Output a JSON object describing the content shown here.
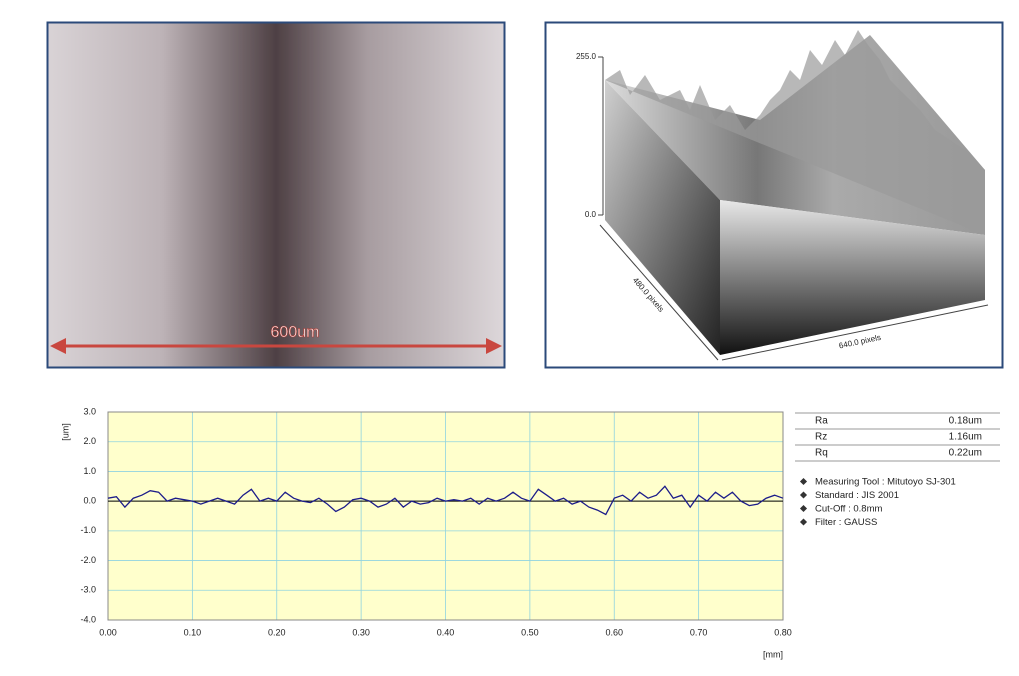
{
  "micrograph": {
    "scale_label": "600um"
  },
  "surface_plot": {
    "z_top": "255.0",
    "z_bottom": "0.0",
    "y_axis": "480.0 pixels",
    "x_axis": "640.0 pixels"
  },
  "chart_data": {
    "type": "line",
    "y_label": "[um]",
    "x_label": "[mm]",
    "xlim": [
      0,
      0.8
    ],
    "xticks": [
      {
        "value": 0,
        "label": "0.00"
      },
      {
        "value": 0.1,
        "label": "0.10"
      },
      {
        "value": 0.2,
        "label": "0.20"
      },
      {
        "value": 0.3,
        "label": "0.30"
      },
      {
        "value": 0.4,
        "label": "0.40"
      },
      {
        "value": 0.5,
        "label": "0.50"
      },
      {
        "value": 0.6,
        "label": "0.60"
      },
      {
        "value": 0.7,
        "label": "0.70"
      },
      {
        "value": 0.8,
        "label": "0.80"
      }
    ],
    "ylim": [
      -4,
      3
    ],
    "yticks": [
      {
        "value": 3,
        "label": "3.0"
      },
      {
        "value": 2,
        "label": "2.0"
      },
      {
        "value": 1,
        "label": "1.0"
      },
      {
        "value": 0,
        "label": "0.0"
      },
      {
        "value": -1,
        "label": "-1.0"
      },
      {
        "value": -2,
        "label": "-2.0"
      },
      {
        "value": -3,
        "label": "-3.0"
      },
      {
        "value": -4,
        "label": "-4.0"
      }
    ],
    "grid": true,
    "x": [
      0,
      0.01,
      0.02,
      0.03,
      0.04,
      0.05,
      0.06,
      0.07,
      0.08,
      0.09,
      0.1,
      0.11,
      0.12,
      0.13,
      0.14,
      0.15,
      0.16,
      0.17,
      0.18,
      0.19,
      0.2,
      0.21,
      0.22,
      0.23,
      0.24,
      0.25,
      0.26,
      0.27,
      0.28,
      0.29,
      0.3,
      0.31,
      0.32,
      0.33,
      0.34,
      0.35,
      0.36,
      0.37,
      0.38,
      0.39,
      0.4,
      0.41,
      0.42,
      0.43,
      0.44,
      0.45,
      0.46,
      0.47,
      0.48,
      0.49,
      0.5,
      0.51,
      0.52,
      0.53,
      0.54,
      0.55,
      0.56,
      0.57,
      0.58,
      0.59,
      0.6,
      0.61,
      0.62,
      0.63,
      0.64,
      0.65,
      0.66,
      0.67,
      0.68,
      0.69,
      0.7,
      0.71,
      0.72,
      0.73,
      0.74,
      0.75,
      0.76,
      0.77,
      0.78,
      0.79,
      0.8
    ],
    "series": [
      {
        "color": "#1c1c8a",
        "values": [
          0.1,
          0.15,
          -0.2,
          0.1,
          0.2,
          0.35,
          0.3,
          0.0,
          0.1,
          0.05,
          0.0,
          -0.1,
          0.0,
          0.1,
          0.0,
          -0.1,
          0.2,
          0.4,
          0.0,
          0.1,
          0.0,
          0.3,
          0.1,
          0.0,
          -0.05,
          0.1,
          -0.1,
          -0.35,
          -0.2,
          0.05,
          0.1,
          0.0,
          -0.2,
          -0.1,
          0.1,
          -0.2,
          0.0,
          -0.1,
          -0.05,
          0.1,
          0.0,
          0.05,
          0.0,
          0.1,
          -0.1,
          0.1,
          0.0,
          0.1,
          0.3,
          0.1,
          0.0,
          0.4,
          0.2,
          0.0,
          0.1,
          -0.1,
          0.0,
          -0.2,
          -0.3,
          -0.45,
          0.1,
          0.2,
          0.0,
          0.3,
          0.1,
          0.2,
          0.5,
          0.1,
          0.2,
          -0.2,
          0.2,
          0.0,
          0.3,
          0.1,
          0.3,
          0.0,
          -0.15,
          -0.1,
          0.1,
          0.2,
          0.1
        ]
      }
    ]
  },
  "results": {
    "rows": [
      [
        "Ra",
        "0.18um"
      ],
      [
        "Rz",
        "1.16um"
      ],
      [
        "Rq",
        "0.22um"
      ]
    ],
    "notes": [
      "Measuring Tool : Mitutoyo SJ-301",
      "Standard : JIS 2001",
      "Cut-Off : 0.8mm",
      "Filter : GAUSS"
    ]
  }
}
